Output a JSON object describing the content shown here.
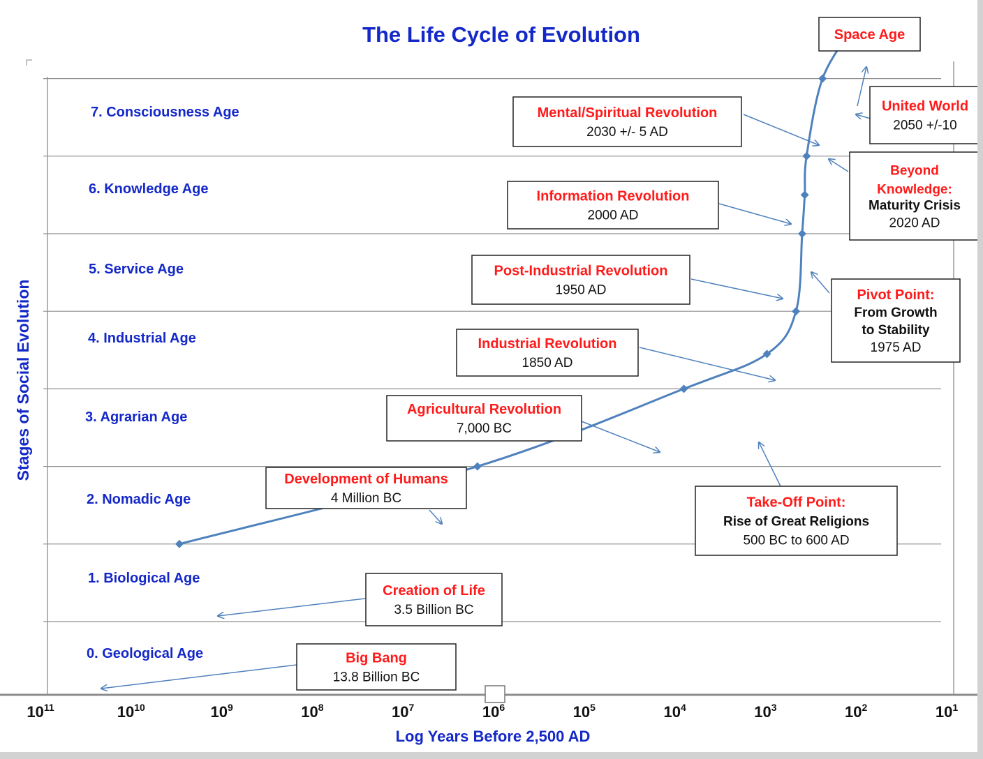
{
  "chart_data": {
    "type": "line",
    "title": "The Life Cycle of Evolution",
    "xlabel": "Log Years Before 2,500 AD",
    "ylabel": "Stages of Social Evolution",
    "x_scale": "log",
    "x_reversed": true,
    "xlim": [
      100000000000,
      10
    ],
    "ylim": [
      0,
      7
    ],
    "x_ticks": [
      {
        "base": "10",
        "exp": "11"
      },
      {
        "base": "10",
        "exp": "10"
      },
      {
        "base": "10",
        "exp": "9"
      },
      {
        "base": "10",
        "exp": "8"
      },
      {
        "base": "10",
        "exp": "7"
      },
      {
        "base": "10",
        "exp": "6"
      },
      {
        "base": "10",
        "exp": "5"
      },
      {
        "base": "10",
        "exp": "4"
      },
      {
        "base": "10",
        "exp": "3"
      },
      {
        "base": "10",
        "exp": "2"
      },
      {
        "base": "10",
        "exp": "1"
      }
    ],
    "stages": [
      "0. Geological Age",
      "1. Biological Age",
      "2. Nomadic Age",
      "3. Agrarian Age",
      "4. Industrial Age",
      "5. Service Age",
      "6. Knowledge Age",
      "7. Consciousness Age"
    ],
    "grid": true,
    "series_color": "#4f81bd",
    "title_color": "#1428c8",
    "stage_label_color": "#1428c8",
    "event_title_color": "#ff1a1a",
    "series": [
      {
        "points": [
          {
            "x": 3500000000,
            "y": 1
          },
          {
            "x": 1800000,
            "y": 2
          },
          {
            "x": 9500,
            "y": 3
          },
          {
            "x": 1150,
            "y": 3.45
          },
          {
            "x": 550,
            "y": 4
          },
          {
            "x": 470,
            "y": 5
          },
          {
            "x": 440,
            "y": 5.5
          },
          {
            "x": 420,
            "y": 6
          },
          {
            "x": 280,
            "y": 7
          },
          {
            "x": 130,
            "y": 7.65
          }
        ]
      }
    ],
    "annotations": [
      {
        "title": "Space Age",
        "lines": []
      },
      {
        "title": "United World",
        "lines": [
          "2050 +/-10"
        ]
      },
      {
        "title": "Mental/Spiritual Revolution",
        "lines": [
          "2030 +/- 5 AD"
        ]
      },
      {
        "title": "Beyond Knowledge:",
        "lines": [
          "Maturity Crisis",
          "2020 AD"
        ]
      },
      {
        "title": "Information Revolution",
        "lines": [
          "2000 AD"
        ]
      },
      {
        "title": "Post-Industrial Revolution",
        "lines": [
          "1950 AD"
        ]
      },
      {
        "title": "Pivot Point:",
        "lines": [
          "From Growth",
          "to Stability",
          "1975 AD"
        ]
      },
      {
        "title": "Industrial Revolution",
        "lines": [
          "1850 AD"
        ]
      },
      {
        "title": "Agricultural Revolution",
        "lines": [
          "7,000 BC"
        ]
      },
      {
        "title": "Development of Humans",
        "lines": [
          "4 Million BC"
        ]
      },
      {
        "title": "Take-Off Point:",
        "lines": [
          "Rise of Great Religions",
          "500 BC to 600 AD"
        ]
      },
      {
        "title": "Creation of Life",
        "lines": [
          "3.5 Billion BC"
        ]
      },
      {
        "title": "Big Bang",
        "lines": [
          "13.8 Billion BC"
        ]
      }
    ]
  }
}
